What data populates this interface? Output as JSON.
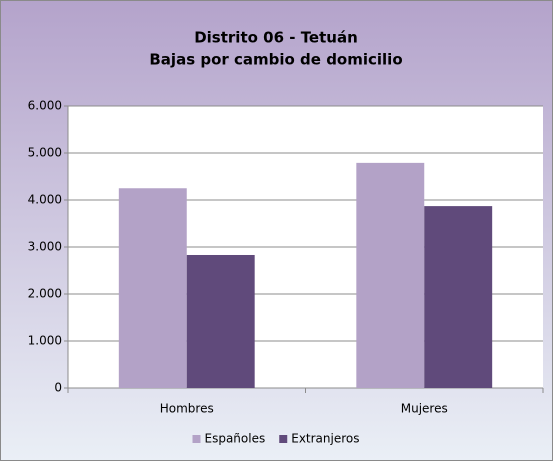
{
  "chart_data": {
    "type": "bar",
    "title": [
      "Distrito 06 - Tetuán",
      "Bajas por cambio de domicilio"
    ],
    "categories": [
      "Hombres",
      "Mujeres"
    ],
    "series": [
      {
        "name": "Españoles",
        "color": "#b3a2c7",
        "values": [
          4250,
          4790
        ]
      },
      {
        "name": "Extranjeros",
        "color": "#604a7b",
        "values": [
          2830,
          3870
        ]
      }
    ],
    "ylim": [
      0,
      6000
    ],
    "yticks": [
      0,
      {
        "value": 1000,
        "label": "1.000"
      },
      {
        "value": 2000,
        "label": "2.000"
      },
      {
        "value": 3000,
        "label": "3.000"
      },
      {
        "value": 4000,
        "label": "4.000"
      },
      {
        "value": 5000,
        "label": "5.000"
      },
      {
        "value": 6000,
        "label": "6.000"
      }
    ],
    "grid": true,
    "legend": "bottom"
  }
}
